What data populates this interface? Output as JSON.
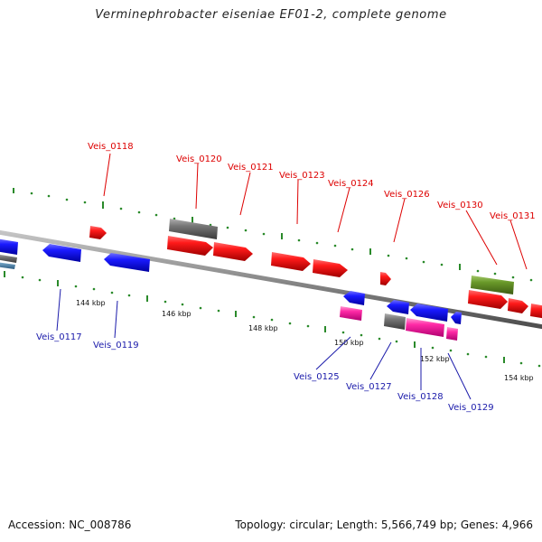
{
  "title": "Verminephrobacter eiseniae EF01-2, complete genome",
  "footer": {
    "accession": "Accession: NC_008786",
    "summary": "Topology: circular; Length: 5,566,749 bp; Genes: 4,966"
  },
  "colors": {
    "backbone": "#8c8c8c",
    "forward_label": "#dd0000",
    "reverse_label": "#1a1aaa",
    "tick": "#2a8a2a",
    "red_gene": "#ff1010",
    "blue_gene": "#1010ff",
    "gray_gene": "#6e6e6e",
    "magenta_gene": "#ff2aa6",
    "olive_gene": "#6a9a2a"
  },
  "scale_labels": [
    "144 kbp",
    "146 kbp",
    "148 kbp",
    "150 kbp",
    "152 kbp",
    "154 kbp"
  ],
  "forward_gene_labels": [
    "Veis_0118",
    "Veis_0120",
    "Veis_0121",
    "Veis_0123",
    "Veis_0124",
    "Veis_0126",
    "Veis_0130",
    "Veis_0131"
  ],
  "reverse_gene_labels": [
    "Veis_0117",
    "Veis_0119",
    "Veis_0125",
    "Veis_0127",
    "Veis_0128",
    "Veis_0129"
  ]
}
